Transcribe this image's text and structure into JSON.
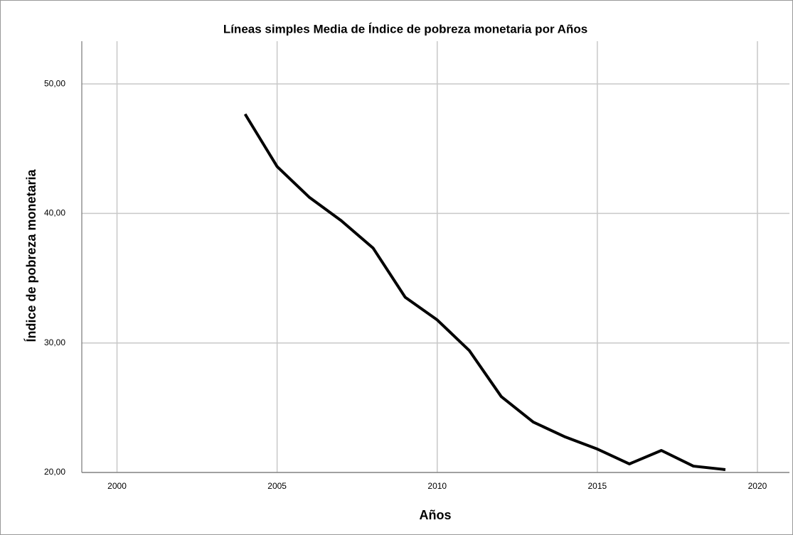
{
  "chart_data": {
    "type": "line",
    "title": "Líneas simples Media de Índice de pobreza monetaria por Años",
    "x_label": "Años",
    "y_label": "Índice de pobreza monetaria",
    "x": [
      2004,
      2005,
      2006,
      2007,
      2008,
      2009,
      2010,
      2011,
      2012,
      2013,
      2014,
      2015,
      2016,
      2017,
      2018,
      2019
    ],
    "series": [
      {
        "name": "Media de Índice de pobreza monetaria",
        "color": "#000000",
        "values": [
          47.67,
          43.62,
          41.26,
          39.45,
          37.32,
          33.53,
          31.78,
          29.42,
          25.86,
          23.89,
          22.74,
          21.81,
          20.66,
          21.7,
          20.49,
          20.22
        ]
      }
    ],
    "xlim": [
      1998.9,
      2021
    ],
    "ylim": [
      20,
      53.3
    ],
    "xticks": [
      2000,
      2005,
      2010,
      2015,
      2020
    ],
    "yticks": [
      {
        "value": 20,
        "label": "20,00"
      },
      {
        "value": 30,
        "label": "30,00"
      },
      {
        "value": 40,
        "label": "40,00"
      },
      {
        "value": 50,
        "label": "50,00"
      }
    ],
    "grid": true
  }
}
